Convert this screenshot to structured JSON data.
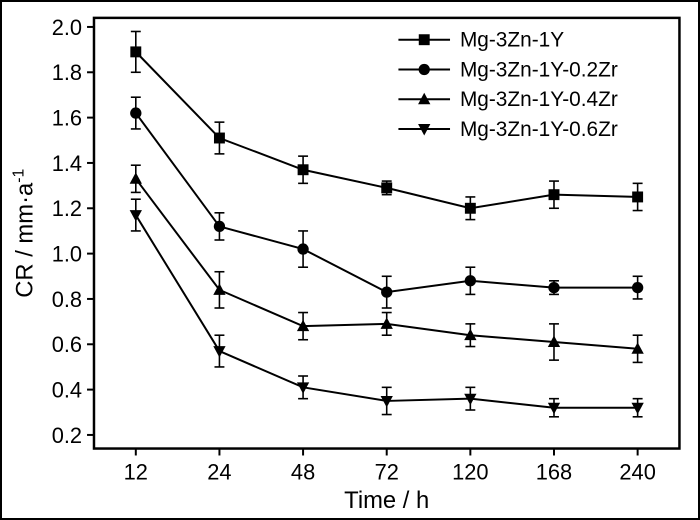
{
  "figure": {
    "background": "#ffffff",
    "border_color": "#000000"
  },
  "chart_data": {
    "type": "line",
    "title": "",
    "xlabel": "Time / h",
    "ylabel": "CR / mm·a⁻¹",
    "x_tick_labels": [
      "12",
      "24",
      "48",
      "72",
      "120",
      "168",
      "240"
    ],
    "y_tick_labels": [
      "0.2",
      "0.4",
      "0.6",
      "0.8",
      "1.0",
      "1.2",
      "1.4",
      "1.6",
      "1.8",
      "2.0"
    ],
    "ylim": [
      0.2,
      2.0
    ],
    "grid": false,
    "legend_position": "top-right-inside",
    "line_color": "#000000",
    "error_bars": true,
    "series": [
      {
        "name": "Mg-3Zn-1Y",
        "marker": "square",
        "values": [
          1.89,
          1.51,
          1.37,
          1.29,
          1.2,
          1.26,
          1.25
        ],
        "errors": [
          0.09,
          0.07,
          0.06,
          0.03,
          0.05,
          0.06,
          0.06
        ]
      },
      {
        "name": "Mg-3Zn-1Y-0.2Zr",
        "marker": "circle",
        "values": [
          1.62,
          1.12,
          1.02,
          0.83,
          0.88,
          0.85,
          0.85
        ],
        "errors": [
          0.07,
          0.06,
          0.08,
          0.07,
          0.06,
          0.03,
          0.05
        ]
      },
      {
        "name": "Mg-3Zn-1Y-0.4Zr",
        "marker": "triangle-up",
        "values": [
          1.33,
          0.84,
          0.68,
          0.69,
          0.64,
          0.61,
          0.58
        ],
        "errors": [
          0.06,
          0.08,
          0.06,
          0.05,
          0.05,
          0.08,
          0.06
        ]
      },
      {
        "name": "Mg-3Zn-1Y-0.6Zr",
        "marker": "triangle-down",
        "values": [
          1.17,
          0.57,
          0.41,
          0.35,
          0.36,
          0.32,
          0.32
        ],
        "errors": [
          0.07,
          0.07,
          0.05,
          0.06,
          0.05,
          0.04,
          0.04
        ]
      }
    ]
  }
}
